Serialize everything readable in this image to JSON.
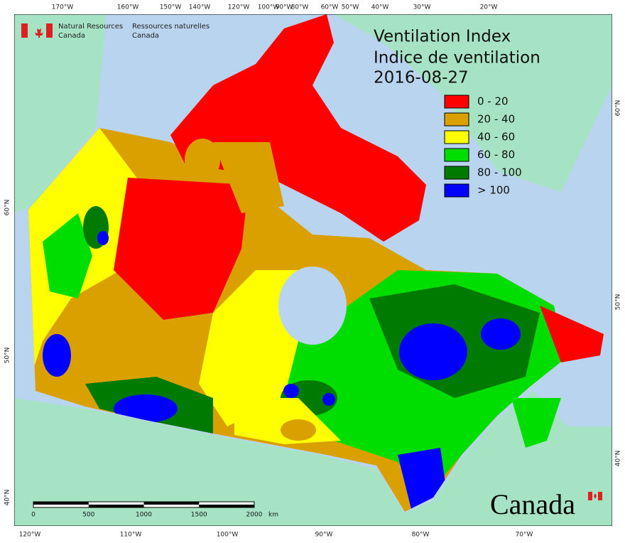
{
  "header": {
    "agency_en": [
      "Natural Resources",
      "Canada"
    ],
    "agency_fr": [
      "Ressources naturelles",
      "Canada"
    ]
  },
  "title": {
    "line1": "Ventilation Index",
    "line2": "Indice de ventilation",
    "date": "2016-08-27"
  },
  "legend": [
    {
      "label": "0 - 20",
      "color": "#ff0000"
    },
    {
      "label": "20 - 40",
      "color": "#d9a000"
    },
    {
      "label": "40 - 60",
      "color": "#ffff00"
    },
    {
      "label": "60 - 80",
      "color": "#00dd00"
    },
    {
      "label": "80 - 100",
      "color": "#007a00"
    },
    {
      "label": "> 100",
      "color": "#0000ff"
    }
  ],
  "graticule": {
    "top": [
      "170°W",
      "160°W",
      "150°W",
      "140°W",
      "120°W",
      "100°W",
      "90°W",
      "80°W",
      "60°W",
      "50°W",
      "40°W",
      "30°W",
      "20°W"
    ],
    "bottom": [
      "120°W",
      "110°W",
      "100°W",
      "90°W",
      "80°W",
      "70°W"
    ],
    "left": [
      "60°N",
      "50°N",
      "40°N"
    ],
    "right": [
      "60°N",
      "50°N",
      "40°N"
    ]
  },
  "scale_bar": {
    "labels": [
      0,
      500,
      1000,
      1500,
      2000
    ],
    "unit": "km"
  },
  "wordmark": "Canada"
}
